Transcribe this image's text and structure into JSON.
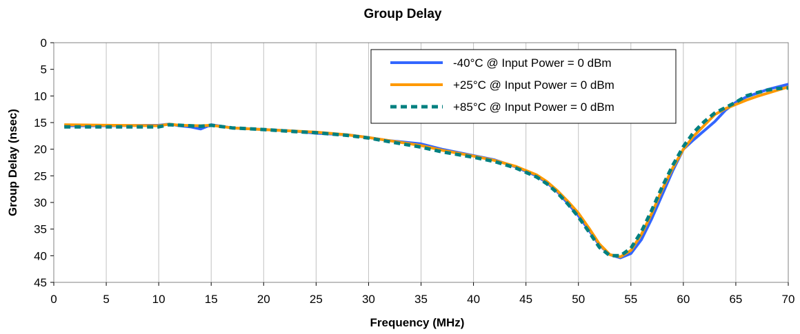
{
  "chart_data": {
    "type": "line",
    "title": "Group Delay",
    "xlabel": "Frequency (MHz)",
    "ylabel": "Group Delay (nsec)",
    "xlim": [
      0,
      70
    ],
    "ylim": [
      0,
      45
    ],
    "y_inverted": true,
    "x_ticks": [
      0,
      5,
      10,
      15,
      20,
      25,
      30,
      35,
      40,
      45,
      50,
      55,
      60,
      65,
      70
    ],
    "y_ticks": [
      0,
      5,
      10,
      15,
      20,
      25,
      30,
      35,
      40,
      45
    ],
    "grid": "vertical",
    "legend_position": "top-right",
    "series": [
      {
        "name": "-40°C @  Input Power = 0 dBm",
        "color": "#3366ff",
        "style": "solid",
        "points": [
          [
            1,
            15.6
          ],
          [
            5,
            15.6
          ],
          [
            10,
            15.5
          ],
          [
            11,
            15.3
          ],
          [
            12,
            15.6
          ],
          [
            13,
            15.8
          ],
          [
            14,
            16.2
          ],
          [
            15,
            15.4
          ],
          [
            17,
            16.0
          ],
          [
            20,
            16.3
          ],
          [
            23,
            16.6
          ],
          [
            25,
            17.0
          ],
          [
            28,
            17.3
          ],
          [
            30,
            17.8
          ],
          [
            32,
            18.4
          ],
          [
            35,
            19.0
          ],
          [
            37,
            20.0
          ],
          [
            40,
            21.2
          ],
          [
            42,
            22.0
          ],
          [
            44,
            23.3
          ],
          [
            46,
            25.0
          ],
          [
            47,
            26.3
          ],
          [
            48,
            28.0
          ],
          [
            49,
            30.2
          ],
          [
            50,
            32.5
          ],
          [
            51,
            35.2
          ],
          [
            52,
            38.0
          ],
          [
            53,
            39.8
          ],
          [
            54,
            40.4
          ],
          [
            55,
            39.6
          ],
          [
            56,
            37.0
          ],
          [
            57,
            33.0
          ],
          [
            58,
            28.5
          ],
          [
            59,
            24.0
          ],
          [
            60,
            20.0
          ],
          [
            61,
            18.2
          ],
          [
            62,
            16.5
          ],
          [
            63,
            14.8
          ],
          [
            64,
            12.7
          ],
          [
            65,
            11.2
          ],
          [
            66,
            10.2
          ],
          [
            67,
            9.5
          ],
          [
            68,
            8.8
          ],
          [
            69,
            8.3
          ],
          [
            70,
            7.8
          ]
        ]
      },
      {
        "name": "+25°C @  Input Power = 0 dBm",
        "color": "#ff9900",
        "style": "solid",
        "points": [
          [
            1,
            15.4
          ],
          [
            5,
            15.5
          ],
          [
            10,
            15.6
          ],
          [
            11,
            15.3
          ],
          [
            12,
            15.5
          ],
          [
            14,
            15.6
          ],
          [
            15,
            15.5
          ],
          [
            17,
            16.0
          ],
          [
            20,
            16.3
          ],
          [
            23,
            16.6
          ],
          [
            25,
            16.8
          ],
          [
            28,
            17.3
          ],
          [
            30,
            17.8
          ],
          [
            32,
            18.4
          ],
          [
            35,
            19.3
          ],
          [
            37,
            20.2
          ],
          [
            40,
            21.3
          ],
          [
            42,
            22.1
          ],
          [
            44,
            23.2
          ],
          [
            46,
            24.8
          ],
          [
            47,
            26.1
          ],
          [
            48,
            27.8
          ],
          [
            49,
            29.8
          ],
          [
            50,
            32.0
          ],
          [
            51,
            34.8
          ],
          [
            52,
            37.8
          ],
          [
            53,
            39.8
          ],
          [
            54,
            40.2
          ],
          [
            55,
            39.0
          ],
          [
            56,
            36.0
          ],
          [
            57,
            32.0
          ],
          [
            58,
            27.5
          ],
          [
            59,
            23.5
          ],
          [
            60,
            20.0
          ],
          [
            61,
            17.5
          ],
          [
            62,
            15.5
          ],
          [
            63,
            13.5
          ],
          [
            64,
            12.4
          ],
          [
            65,
            11.6
          ],
          [
            66,
            10.8
          ],
          [
            67,
            10.1
          ],
          [
            68,
            9.5
          ],
          [
            69,
            8.9
          ],
          [
            70,
            8.3
          ]
        ]
      },
      {
        "name": "+85°C @  Input Power = 0 dBm",
        "color": "#008080",
        "style": "dashed",
        "points": [
          [
            1,
            15.8
          ],
          [
            5,
            15.8
          ],
          [
            10,
            15.8
          ],
          [
            11,
            15.4
          ],
          [
            12,
            15.5
          ],
          [
            14,
            15.7
          ],
          [
            15,
            15.5
          ],
          [
            17,
            16.0
          ],
          [
            20,
            16.3
          ],
          [
            23,
            16.7
          ],
          [
            25,
            16.9
          ],
          [
            28,
            17.4
          ],
          [
            30,
            17.9
          ],
          [
            32,
            18.6
          ],
          [
            35,
            19.6
          ],
          [
            37,
            20.5
          ],
          [
            40,
            21.5
          ],
          [
            42,
            22.3
          ],
          [
            44,
            23.5
          ],
          [
            46,
            25.2
          ],
          [
            47,
            26.5
          ],
          [
            48,
            28.2
          ],
          [
            49,
            30.3
          ],
          [
            50,
            32.7
          ],
          [
            51,
            35.5
          ],
          [
            52,
            38.4
          ],
          [
            53,
            40.0
          ],
          [
            54,
            40.0
          ],
          [
            55,
            38.6
          ],
          [
            56,
            35.5
          ],
          [
            57,
            31.4
          ],
          [
            58,
            27.0
          ],
          [
            59,
            23.0
          ],
          [
            60,
            19.5
          ],
          [
            61,
            16.8
          ],
          [
            62,
            14.8
          ],
          [
            63,
            13.2
          ],
          [
            64,
            12.2
          ],
          [
            65,
            11.2
          ],
          [
            66,
            10.0
          ],
          [
            67,
            9.4
          ],
          [
            68,
            8.9
          ],
          [
            69,
            8.6
          ],
          [
            70,
            8.5
          ]
        ]
      }
    ]
  }
}
